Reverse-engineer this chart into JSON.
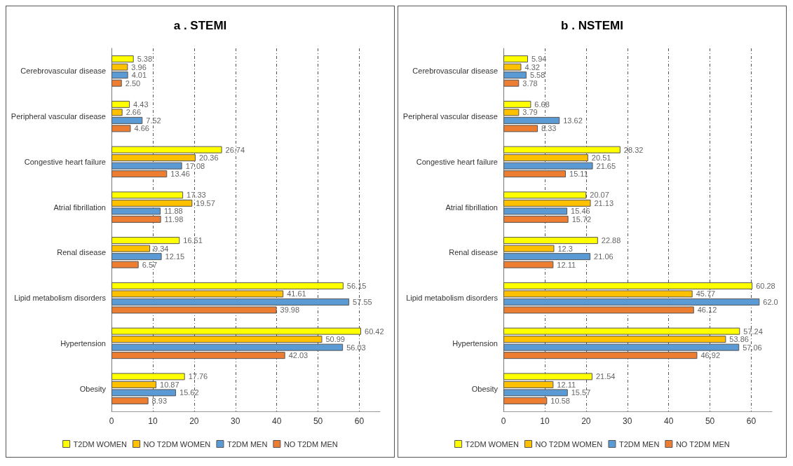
{
  "chart_data": [
    {
      "type": "bar",
      "orientation": "horizontal",
      "title": "a . STEMI",
      "categories": [
        "Cerebrovascular disease",
        "Peripheral vascular disease",
        "Congestive heart failure",
        "Atrial fibrillation",
        "Renal disease",
        "Lipid metabolism disorders",
        "Hypertension",
        "Obesity"
      ],
      "series": [
        {
          "name": "T2DM WOMEN",
          "color": "#ffff00",
          "values": [
            5.38,
            4.43,
            26.74,
            17.33,
            16.51,
            56.15,
            60.42,
            17.76
          ],
          "value_labels": [
            "5.38",
            "4.43",
            "26.74",
            "17.33",
            "16.51",
            "56.15",
            "60.42",
            "17.76"
          ]
        },
        {
          "name": "NO T2DM WOMEN",
          "color": "#ffc000",
          "values": [
            3.96,
            2.66,
            20.36,
            19.57,
            9.34,
            41.61,
            50.99,
            10.87
          ],
          "value_labels": [
            "3.96",
            "2.66",
            "20.36",
            "19.57",
            "9.34",
            "41.61",
            "50.99",
            "10.87"
          ]
        },
        {
          "name": "T2DM MEN",
          "color": "#5b9bd5",
          "values": [
            4.01,
            7.52,
            17.08,
            11.88,
            12.15,
            57.55,
            56.03,
            15.62
          ],
          "value_labels": [
            "4.01",
            "7.52",
            "17.08",
            "11.88",
            "12.15",
            "57.55",
            "56.03",
            "15.62"
          ]
        },
        {
          "name": "NO T2DM MEN",
          "color": "#ed7d31",
          "values": [
            2.5,
            4.66,
            13.46,
            11.98,
            6.57,
            39.98,
            42.03,
            8.93
          ],
          "value_labels": [
            "2.50",
            "4.66",
            "13.46",
            "11.98",
            "6.57",
            "39.98",
            "42.03",
            "8.93"
          ]
        }
      ],
      "xlim": [
        0,
        65
      ],
      "xticks": [
        0,
        10,
        20,
        30,
        40,
        50,
        60
      ],
      "grid": "x",
      "legend": "bottom"
    },
    {
      "type": "bar",
      "orientation": "horizontal",
      "title": "b . NSTEMI",
      "categories": [
        "Cerebrovascular disease",
        "Peripheral vascular disease",
        "Congestive heart failure",
        "Atrial fibrillation",
        "Renal disease",
        "Lipid metabolism disorders",
        "Hypertension",
        "Obesity"
      ],
      "series": [
        {
          "name": "T2DM WOMEN",
          "color": "#ffff00",
          "values": [
            5.94,
            6.68,
            28.32,
            20.07,
            22.88,
            60.28,
            57.24,
            21.54
          ],
          "value_labels": [
            "5.94",
            "6.68",
            "28.32",
            "20.07",
            "22.88",
            "60.28",
            "57.24",
            "21.54"
          ]
        },
        {
          "name": "NO T2DM WOMEN",
          "color": "#ffc000",
          "values": [
            4.32,
            3.79,
            20.51,
            21.13,
            12.3,
            45.77,
            53.86,
            12.11
          ],
          "value_labels": [
            "4.32",
            "3.79",
            "20.51",
            "21.13",
            "12.3",
            "45.77",
            "53.86",
            "12.11"
          ]
        },
        {
          "name": "T2DM MEN",
          "color": "#5b9bd5",
          "values": [
            5.58,
            13.62,
            21.65,
            15.46,
            21.06,
            62.0,
            57.06,
            15.57
          ],
          "value_labels": [
            "5.58",
            "13.62",
            "21.65",
            "15.46",
            "21.06",
            "62.0",
            "57.06",
            "15.57"
          ]
        },
        {
          "name": "NO T2DM MEN",
          "color": "#ed7d31",
          "values": [
            3.78,
            8.33,
            15.11,
            15.72,
            12.11,
            46.12,
            46.92,
            10.58
          ],
          "value_labels": [
            "3.78",
            "8.33",
            "15.11",
            "15.72",
            "12.11",
            "46.12",
            "46.92",
            "10.58"
          ]
        }
      ],
      "xlim": [
        0,
        65
      ],
      "xticks": [
        0,
        10,
        20,
        30,
        40,
        50,
        60
      ],
      "grid": "x",
      "legend": "bottom"
    }
  ]
}
